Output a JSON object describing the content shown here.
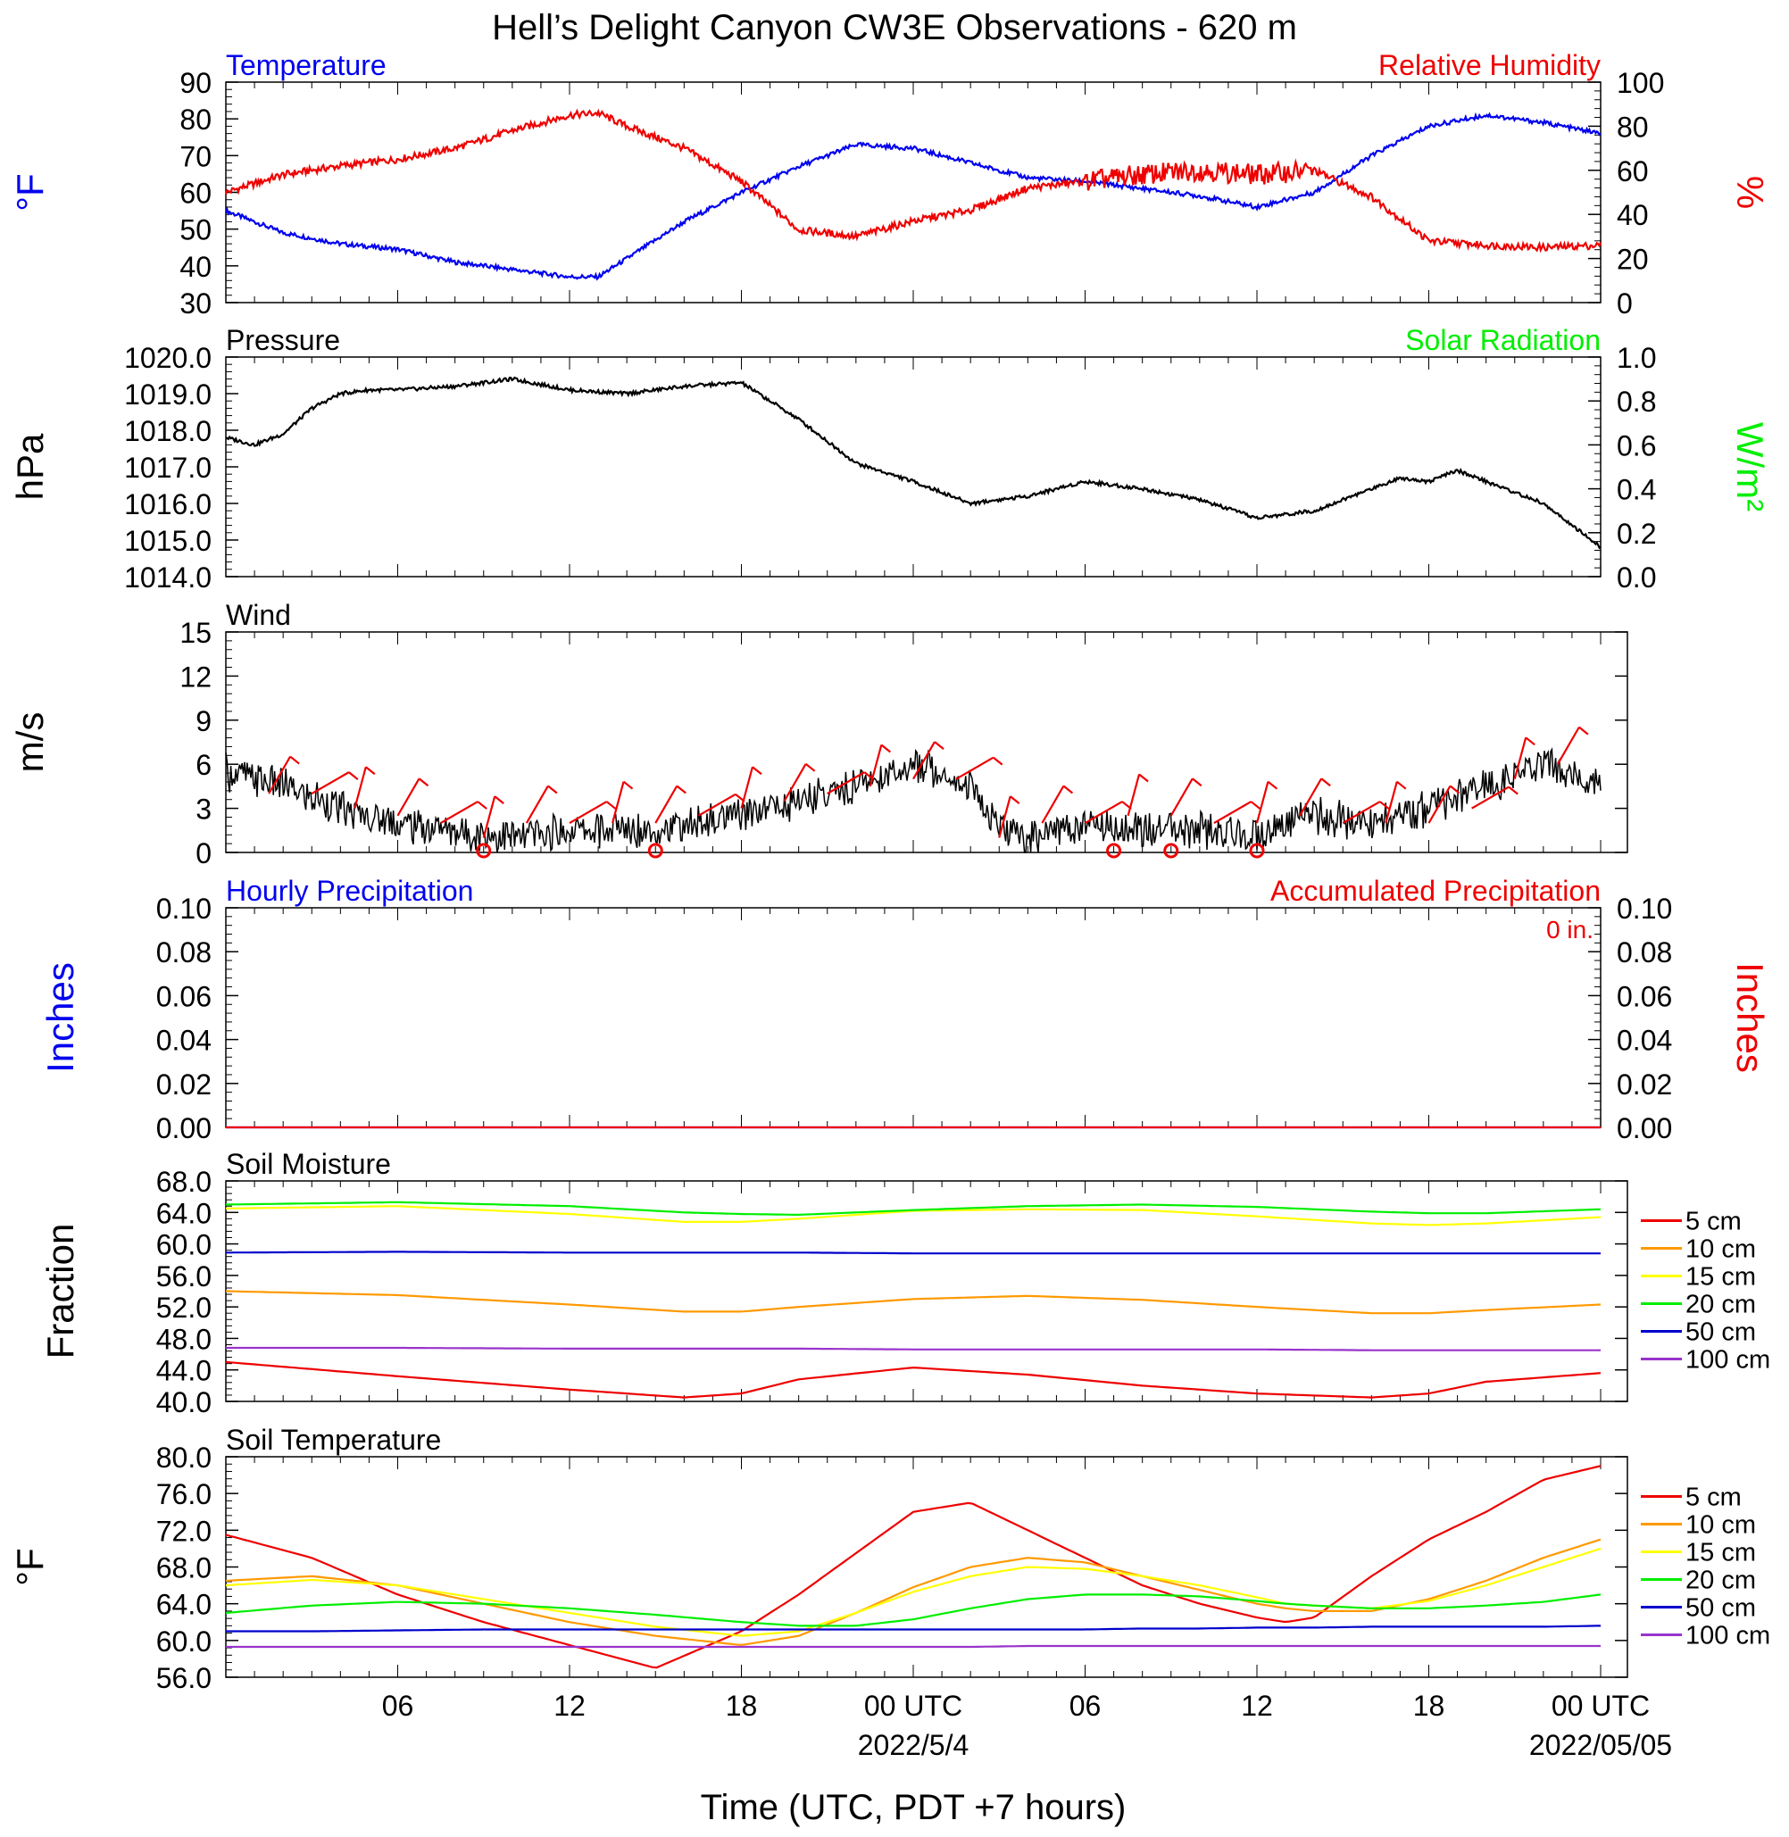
{
  "figure": {
    "title": "Hell’s Delight Canyon CW3E Observations - 620 m",
    "xlabel": "Time (UTC, PDT +7 hours)",
    "x_ticks": [
      "06",
      "12",
      "18",
      "00 UTC",
      "06",
      "12",
      "18",
      "00 UTC"
    ],
    "x_dates": [
      "2022/5/4",
      "2022/05/05"
    ]
  },
  "chart_data": [
    {
      "type": "line",
      "panel": "temperature_humidity",
      "left_title": "Temperature",
      "right_title": "Relative Humidity",
      "ylabel_left": "°F",
      "ylabel_right": "%",
      "ylim_left": [
        30,
        90
      ],
      "ylim_right": [
        0,
        100
      ],
      "yticks_left": [
        "90",
        "80",
        "70",
        "60",
        "50",
        "40",
        "30"
      ],
      "yticks_right": [
        "100",
        "80",
        "60",
        "40",
        "20",
        "0"
      ],
      "x_hours": [
        0,
        2,
        4,
        6,
        8,
        10,
        12,
        13,
        14,
        16,
        18,
        20,
        22,
        24,
        26,
        28,
        30,
        32,
        34,
        36,
        38,
        40,
        42,
        44,
        46,
        48
      ],
      "series": [
        {
          "name": "Temperature",
          "color": "#0000ee",
          "axis": "left",
          "values": [
            55,
            49,
            46,
            44.5,
            41,
            39,
            37,
            37,
            42,
            52,
            60,
            67,
            73,
            72,
            68,
            64,
            63,
            61,
            59,
            56,
            60,
            70,
            78,
            81,
            79,
            76
          ]
        },
        {
          "name": "Relative Humidity",
          "color": "#ee0000",
          "axis": "right",
          "values": [
            50,
            58,
            62,
            65,
            70,
            78,
            85,
            86,
            80,
            70,
            55,
            33,
            30,
            37,
            42,
            52,
            55,
            58,
            60,
            58,
            60,
            48,
            28,
            26,
            25,
            26
          ]
        }
      ]
    },
    {
      "type": "line",
      "panel": "pressure_solar",
      "left_title": "Pressure",
      "right_title": "Solar Radiation",
      "ylabel_left": "hPa",
      "ylabel_right": "W/m²",
      "ylim_left": [
        1014,
        1020
      ],
      "ylim_right": [
        0,
        1
      ],
      "yticks_left": [
        "1020.0",
        "1019.0",
        "1018.0",
        "1017.0",
        "1016.0",
        "1015.0",
        "1014.0"
      ],
      "yticks_right": [
        "1.0",
        "0.8",
        "0.6",
        "0.4",
        "0.2",
        "0.0"
      ],
      "x_hours": [
        0,
        1,
        2,
        3,
        4,
        5,
        6,
        8,
        10,
        12,
        14,
        16,
        18,
        20,
        22,
        24,
        26,
        28,
        30,
        32,
        34,
        36,
        38,
        40,
        41,
        42,
        43,
        44,
        46,
        48
      ],
      "series": [
        {
          "name": "Pressure",
          "color": "#000000",
          "axis": "left",
          "values": [
            1017.8,
            1017.6,
            1017.9,
            1018.6,
            1019.0,
            1019.1,
            1019.1,
            1019.2,
            1019.4,
            1019.1,
            1019.0,
            1019.2,
            1019.3,
            1018.3,
            1017.1,
            1016.6,
            1016.0,
            1016.2,
            1016.6,
            1016.4,
            1016.1,
            1015.6,
            1015.8,
            1016.4,
            1016.7,
            1016.6,
            1016.9,
            1016.6,
            1016.0,
            1014.8
          ]
        }
      ]
    },
    {
      "type": "line",
      "panel": "wind",
      "left_title": "Wind",
      "ylabel_left": "m/s",
      "ylim_left": [
        0,
        15
      ],
      "yticks_left": [
        "15",
        "12",
        "9",
        "6",
        "3",
        "0"
      ],
      "x_hours": [
        0,
        2,
        4,
        6,
        8,
        10,
        12,
        14,
        16,
        18,
        20,
        22,
        24,
        25,
        26,
        27,
        28,
        30,
        32,
        34,
        36,
        38,
        40,
        42,
        44,
        46,
        48
      ],
      "series": [
        {
          "name": "Wind speed",
          "color": "#000000",
          "axis": "left",
          "values": [
            5.5,
            4.5,
            3,
            2,
            1.5,
            1,
            1.5,
            1.5,
            1.8,
            2.5,
            3.5,
            4.5,
            6,
            5.5,
            4.5,
            1.5,
            1,
            2,
            1.5,
            1.5,
            1.2,
            2.5,
            2,
            3,
            4.5,
            6,
            5
          ]
        }
      ],
      "calm_marker_hours": [
        9,
        15,
        31,
        33,
        36
      ],
      "barb_hours": [
        1.5,
        3,
        4.5,
        6,
        7.5,
        9,
        10.5,
        12,
        13.5,
        15,
        16.5,
        18,
        19.5,
        21,
        22.5,
        24,
        25.5,
        27,
        28.5,
        30,
        31.5,
        33,
        34.5,
        36,
        37.5,
        39,
        40.5,
        42,
        43.5,
        45,
        46.5
      ],
      "barb_speeds": [
        4,
        4,
        3,
        2.5,
        2,
        1,
        2,
        2,
        2,
        2,
        2.5,
        3,
        3.5,
        4,
        4.5,
        5,
        5,
        1,
        2,
        2,
        2.5,
        2.5,
        2,
        2,
        2.5,
        2,
        2,
        2,
        3,
        5,
        6
      ]
    },
    {
      "type": "line",
      "panel": "precipitation",
      "left_title": "Hourly Precipitation",
      "right_title": "Accumulated Precipitation",
      "annotation": "0 in.",
      "ylabel_left": "Inches",
      "ylabel_right": "Inches",
      "ylim_left": [
        0,
        0.1
      ],
      "ylim_right": [
        0,
        0.1
      ],
      "yticks_left": [
        "0.10",
        "0.08",
        "0.06",
        "0.04",
        "0.02",
        "0.00"
      ],
      "yticks_right": [
        "0.10",
        "0.08",
        "0.06",
        "0.04",
        "0.02",
        "0.00"
      ],
      "x_hours": [
        0,
        48
      ],
      "series": [
        {
          "name": "Hourly Precipitation",
          "color": "#0000ee",
          "axis": "left",
          "values": [
            0,
            0
          ]
        },
        {
          "name": "Accumulated Precipitation",
          "color": "#ee0000",
          "axis": "right",
          "values": [
            0,
            0
          ]
        }
      ]
    },
    {
      "type": "line",
      "panel": "soil_moisture",
      "left_title": "Soil Moisture",
      "ylabel_left": "Fraction",
      "ylim_left": [
        40,
        68
      ],
      "yticks_left": [
        "68.0",
        "64.0",
        "60.0",
        "56.0",
        "52.0",
        "48.0",
        "44.0",
        "40.0"
      ],
      "x_hours": [
        0,
        6,
        12,
        16,
        18,
        20,
        24,
        28,
        32,
        36,
        40,
        42,
        44,
        48
      ],
      "series": [
        {
          "name": "5 cm",
          "color": "#ee0000",
          "values": [
            45,
            43.2,
            41.5,
            40.5,
            41,
            42.8,
            44.3,
            43.4,
            42,
            41,
            40.5,
            41,
            42.5,
            43.6
          ]
        },
        {
          "name": "10 cm",
          "color": "#ff9900",
          "values": [
            54,
            53.5,
            52.3,
            51.4,
            51.4,
            52,
            53,
            53.4,
            52.9,
            52,
            51.2,
            51.2,
            51.6,
            52.3
          ]
        },
        {
          "name": "15 cm",
          "color": "#ffff00",
          "values": [
            64.5,
            64.8,
            63.8,
            62.8,
            62.8,
            63.2,
            64.2,
            64.4,
            64.3,
            63.5,
            62.6,
            62.4,
            62.6,
            63.4
          ]
        },
        {
          "name": "20 cm",
          "color": "#00ee00",
          "values": [
            65,
            65.3,
            64.8,
            64,
            63.8,
            63.7,
            64.3,
            64.8,
            65,
            64.7,
            64.1,
            63.9,
            63.9,
            64.4
          ]
        },
        {
          "name": "50 cm",
          "color": "#0000cc",
          "values": [
            58.9,
            59,
            58.9,
            58.9,
            58.9,
            58.9,
            58.8,
            58.8,
            58.8,
            58.8,
            58.8,
            58.8,
            58.8,
            58.8
          ]
        },
        {
          "name": "100 cm",
          "color": "#9933cc",
          "values": [
            46.8,
            46.8,
            46.7,
            46.7,
            46.7,
            46.7,
            46.6,
            46.6,
            46.6,
            46.6,
            46.5,
            46.5,
            46.5,
            46.5
          ]
        }
      ],
      "legend": [
        "5 cm",
        "10 cm",
        "15 cm",
        "20 cm",
        "50 cm",
        "100 cm"
      ]
    },
    {
      "type": "line",
      "panel": "soil_temperature",
      "left_title": "Soil Temperature",
      "ylabel_left": "°F",
      "ylim_left": [
        56,
        80
      ],
      "yticks_left": [
        "80.0",
        "76.0",
        "72.0",
        "68.0",
        "64.0",
        "60.0",
        "56.0"
      ],
      "x_hours": [
        0,
        3,
        6,
        9,
        12,
        15,
        18,
        20,
        22,
        24,
        26,
        28,
        30,
        32,
        34,
        36,
        37,
        38,
        40,
        42,
        44,
        46,
        48
      ],
      "series": [
        {
          "name": "5 cm",
          "color": "#ee0000",
          "values": [
            71.5,
            69,
            65,
            62,
            59.5,
            57,
            61,
            65,
            69.5,
            74,
            75,
            72,
            69,
            66,
            64,
            62.5,
            62,
            62.5,
            67,
            71,
            74,
            77.5,
            79
          ]
        },
        {
          "name": "10 cm",
          "color": "#ff9900",
          "values": [
            66.5,
            67,
            66,
            64,
            62,
            60.5,
            59.5,
            60.5,
            63,
            65.8,
            68,
            69,
            68.5,
            67,
            65.5,
            64,
            63.5,
            63.2,
            63.2,
            64.5,
            66.5,
            69,
            71
          ]
        },
        {
          "name": "15 cm",
          "color": "#ffff00",
          "values": [
            66,
            66.6,
            66,
            64.5,
            63,
            61.5,
            60.5,
            61,
            63,
            65.3,
            67,
            68,
            67.8,
            67,
            66,
            64.7,
            64,
            63.8,
            63.5,
            64.3,
            66,
            68,
            70
          ]
        },
        {
          "name": "20 cm",
          "color": "#00ee00",
          "values": [
            63,
            63.8,
            64.2,
            64,
            63.5,
            62.8,
            62,
            61.6,
            61.6,
            62.3,
            63.5,
            64.5,
            65,
            65,
            64.8,
            64.3,
            64,
            63.8,
            63.5,
            63.5,
            63.8,
            64.2,
            65
          ]
        },
        {
          "name": "50 cm",
          "color": "#0000cc",
          "values": [
            61,
            61,
            61.1,
            61.2,
            61.2,
            61.2,
            61.2,
            61.2,
            61.2,
            61.2,
            61.2,
            61.2,
            61.2,
            61.3,
            61.3,
            61.4,
            61.4,
            61.4,
            61.5,
            61.5,
            61.5,
            61.5,
            61.6
          ]
        },
        {
          "name": "100 cm",
          "color": "#9933cc",
          "values": [
            59.3,
            59.3,
            59.3,
            59.3,
            59.3,
            59.3,
            59.3,
            59.3,
            59.3,
            59.3,
            59.3,
            59.4,
            59.4,
            59.4,
            59.4,
            59.4,
            59.4,
            59.4,
            59.4,
            59.4,
            59.4,
            59.4,
            59.4
          ]
        }
      ],
      "legend": [
        "5 cm",
        "10 cm",
        "15 cm",
        "20 cm",
        "50 cm",
        "100 cm"
      ]
    }
  ]
}
